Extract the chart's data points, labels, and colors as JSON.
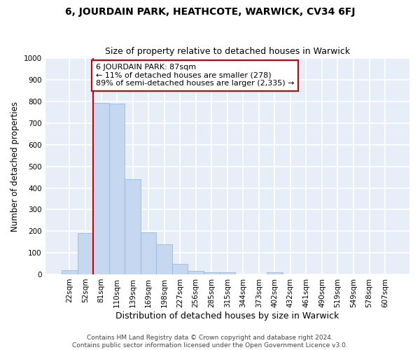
{
  "title": "6, JOURDAIN PARK, HEATHCOTE, WARWICK, CV34 6FJ",
  "subtitle": "Size of property relative to detached houses in Warwick",
  "xlabel": "Distribution of detached houses by size in Warwick",
  "ylabel": "Number of detached properties",
  "bar_color": "#c5d8f0",
  "bar_edge_color": "#8ab4d8",
  "fig_bg_color": "#ffffff",
  "ax_bg_color": "#e8eef8",
  "grid_color": "#ffffff",
  "categories": [
    "22sqm",
    "52sqm",
    "81sqm",
    "110sqm",
    "139sqm",
    "169sqm",
    "198sqm",
    "227sqm",
    "256sqm",
    "285sqm",
    "315sqm",
    "344sqm",
    "373sqm",
    "402sqm",
    "432sqm",
    "461sqm",
    "490sqm",
    "519sqm",
    "549sqm",
    "578sqm",
    "607sqm"
  ],
  "values": [
    20,
    190,
    795,
    790,
    440,
    195,
    140,
    50,
    15,
    10,
    10,
    0,
    0,
    10,
    0,
    0,
    0,
    0,
    0,
    0,
    0
  ],
  "ylim": [
    0,
    1000
  ],
  "yticks": [
    0,
    100,
    200,
    300,
    400,
    500,
    600,
    700,
    800,
    900,
    1000
  ],
  "property_line_index": 2,
  "annotation_line1": "6 JOURDAIN PARK: 87sqm",
  "annotation_line2": "← 11% of detached houses are smaller (278)",
  "annotation_line3": "89% of semi-detached houses are larger (2,335) →",
  "annotation_box_color": "#ffffff",
  "annotation_border_color": "#cc0000",
  "red_line_color": "#cc0000",
  "footer_line1": "Contains HM Land Registry data © Crown copyright and database right 2024.",
  "footer_line2": "Contains public sector information licensed under the Open Government Licence v3.0.",
  "title_fontsize": 10,
  "subtitle_fontsize": 9,
  "tick_fontsize": 7.5,
  "ylabel_fontsize": 8.5,
  "xlabel_fontsize": 9,
  "annotation_fontsize": 8,
  "footer_fontsize": 6.5
}
